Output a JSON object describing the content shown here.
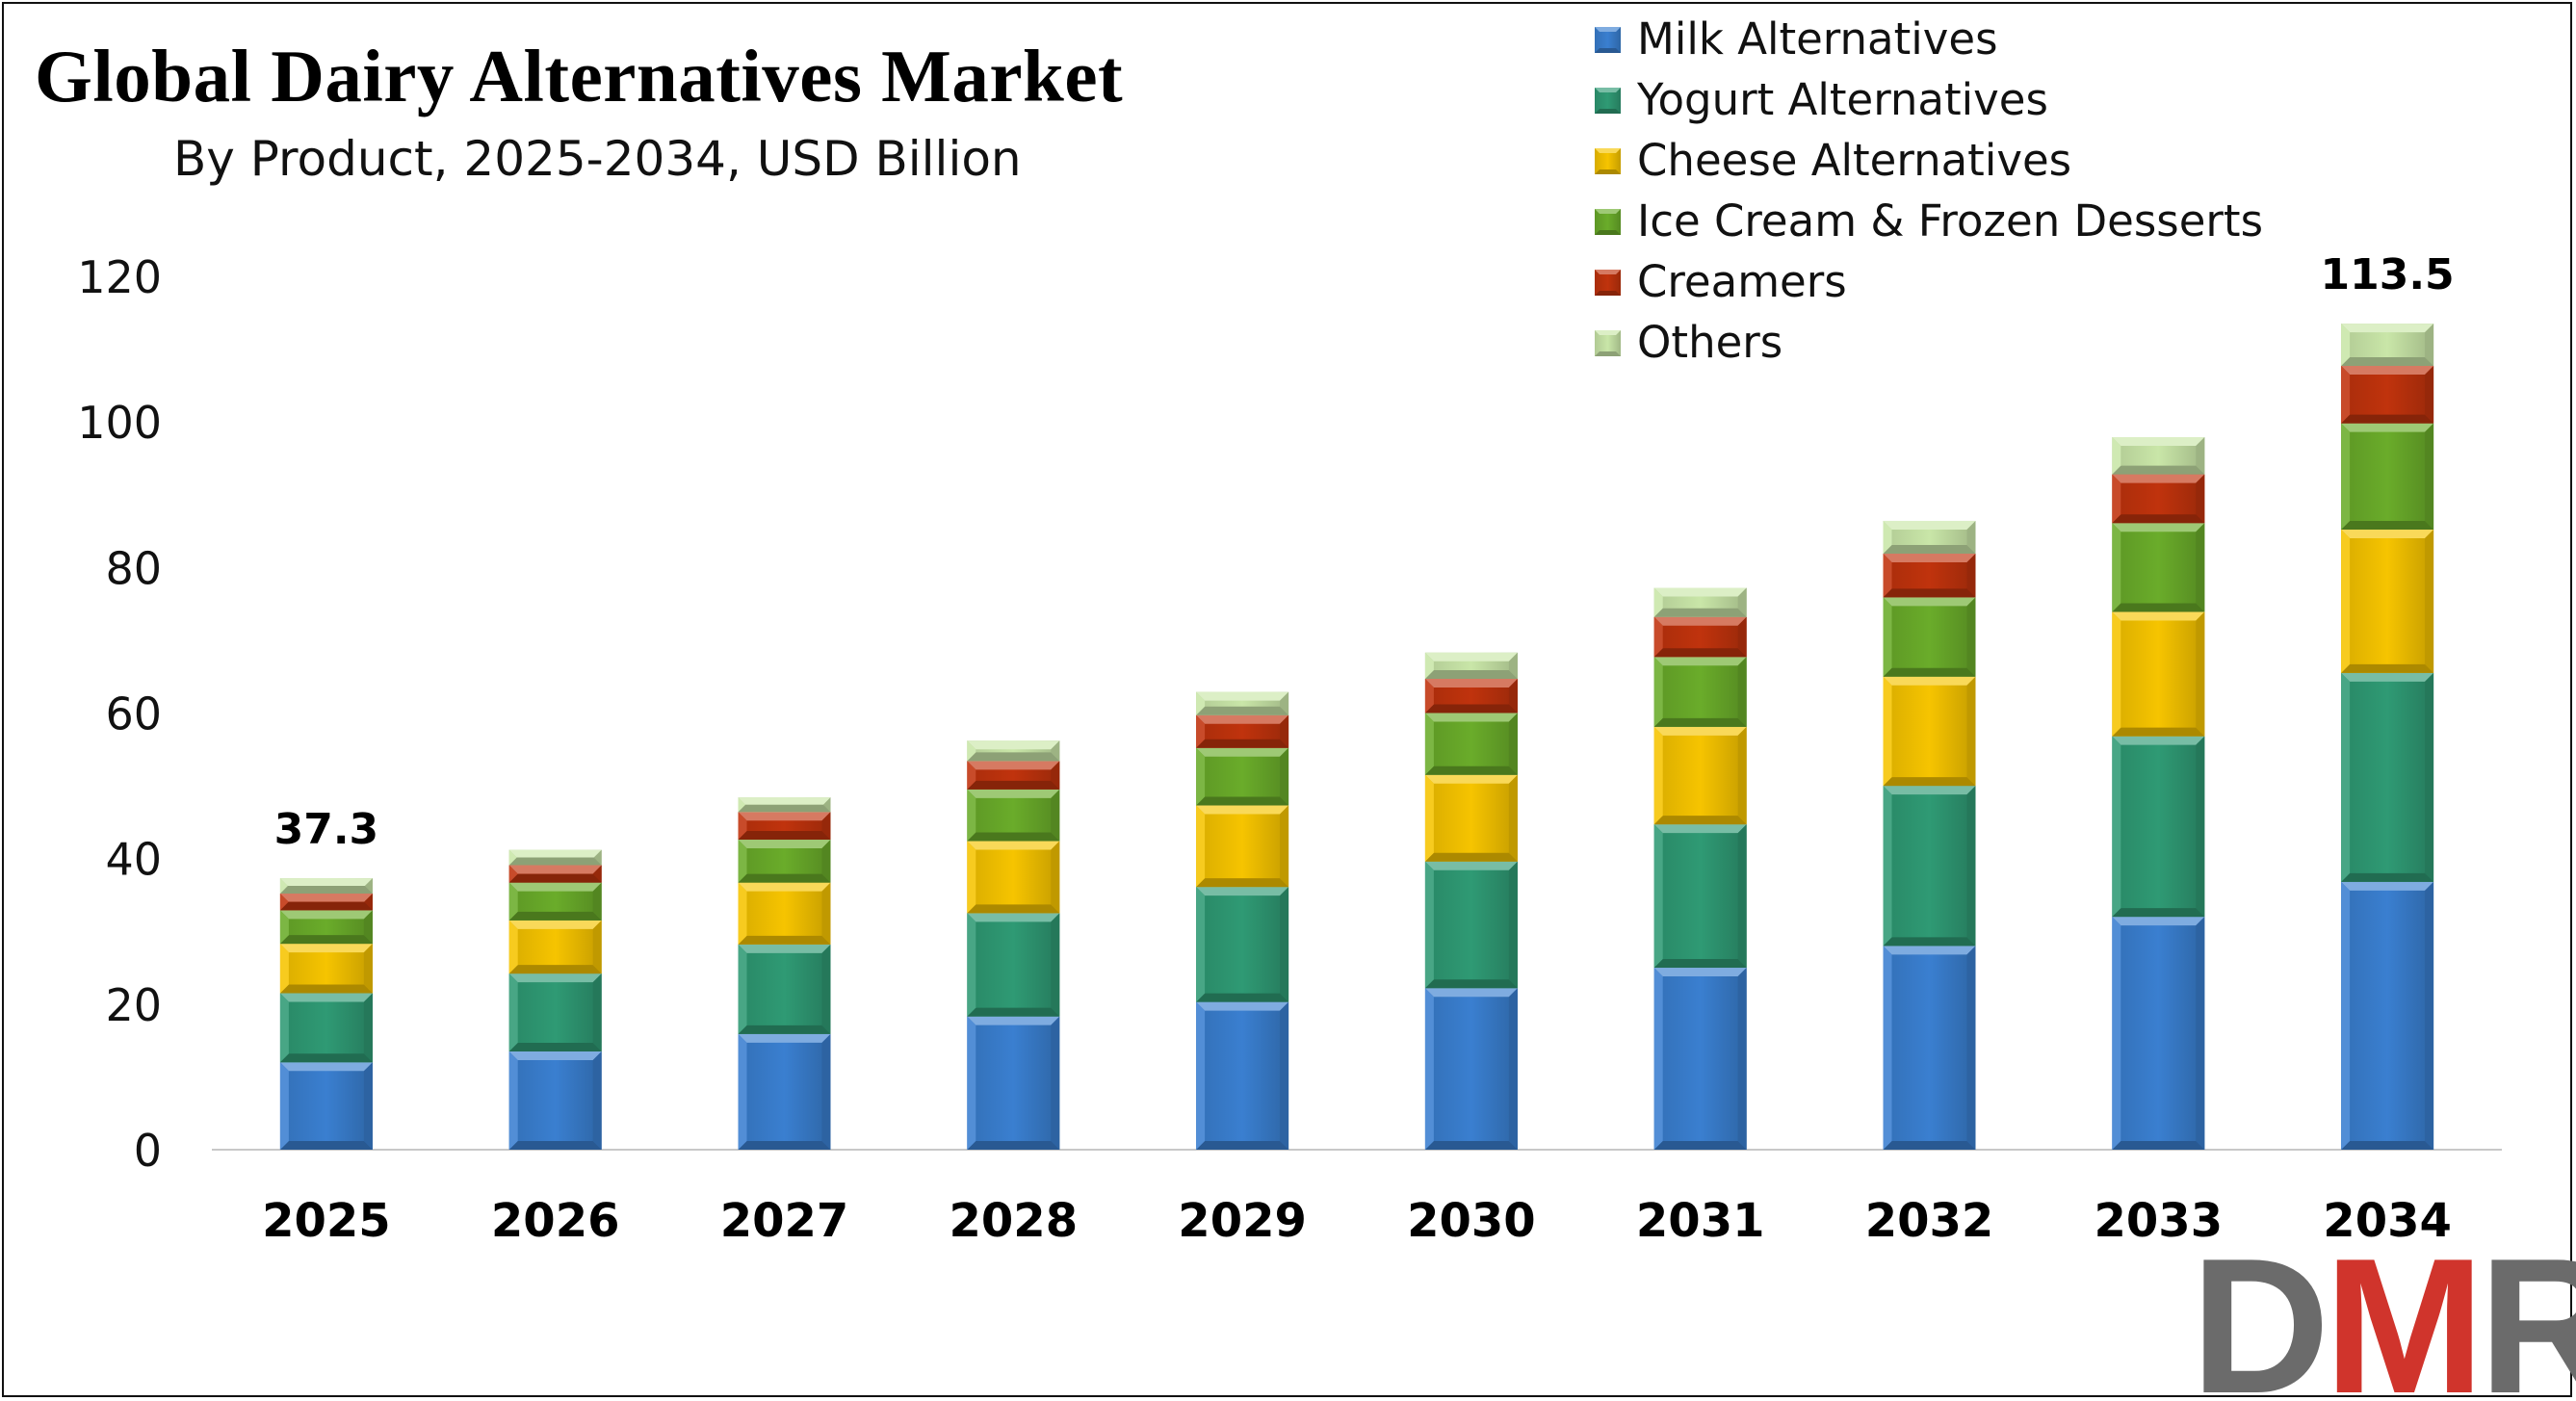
{
  "title": "Global Dairy Alternatives Market",
  "subtitle": "By Product, 2025-2034, USD Billion",
  "logo_text": "DMR",
  "chart_data": {
    "type": "stacked-bar",
    "title": "Global Dairy Alternatives Market",
    "subtitle": "By Product, 2025-2034, USD Billion",
    "xlabel": "",
    "ylabel": "",
    "ylim": [
      0,
      120
    ],
    "yticks": [
      0,
      20,
      40,
      60,
      80,
      100,
      120
    ],
    "grid": false,
    "legend_position": "top-right",
    "categories": [
      "2025",
      "2026",
      "2027",
      "2028",
      "2029",
      "2030",
      "2031",
      "2032",
      "2033",
      "2034"
    ],
    "series": [
      {
        "name": "Milk Alternatives",
        "color": "#3a7fd0",
        "values": [
          12.0,
          13.5,
          15.9,
          18.3,
          20.3,
          22.2,
          25.0,
          28.0,
          32.0,
          36.8
        ]
      },
      {
        "name": "Yogurt Alternatives",
        "color": "#2f9a74",
        "values": [
          9.5,
          10.7,
          12.3,
          14.2,
          15.8,
          17.4,
          19.7,
          22.0,
          24.8,
          28.7
        ]
      },
      {
        "name": "Cheese Alternatives",
        "color": "#f6c400",
        "values": [
          6.8,
          7.3,
          8.5,
          9.9,
          11.2,
          11.9,
          13.4,
          15.0,
          17.1,
          19.7
        ]
      },
      {
        "name": "Ice Cream & Frozen Desserts",
        "color": "#6aac2a",
        "values": [
          4.6,
          5.2,
          5.9,
          7.1,
          7.9,
          8.5,
          9.6,
          10.9,
          12.2,
          14.6
        ]
      },
      {
        "name": "Creamers",
        "color": "#c0330d",
        "values": [
          2.3,
          2.4,
          3.8,
          3.9,
          4.5,
          4.7,
          5.5,
          6.0,
          6.7,
          7.9
        ]
      },
      {
        "name": "Others",
        "color": "#c9e6a8",
        "values": [
          2.1,
          2.1,
          2.0,
          2.8,
          3.2,
          3.6,
          4.0,
          4.5,
          5.1,
          5.8
        ]
      }
    ],
    "totals": [
      37.3,
      41.2,
      48.4,
      56.2,
      62.9,
      68.3,
      77.2,
      86.4,
      97.9,
      113.5
    ],
    "data_labels": [
      {
        "category": "2025",
        "text": "37.3"
      },
      {
        "category": "2034",
        "text": "113.5"
      }
    ]
  }
}
